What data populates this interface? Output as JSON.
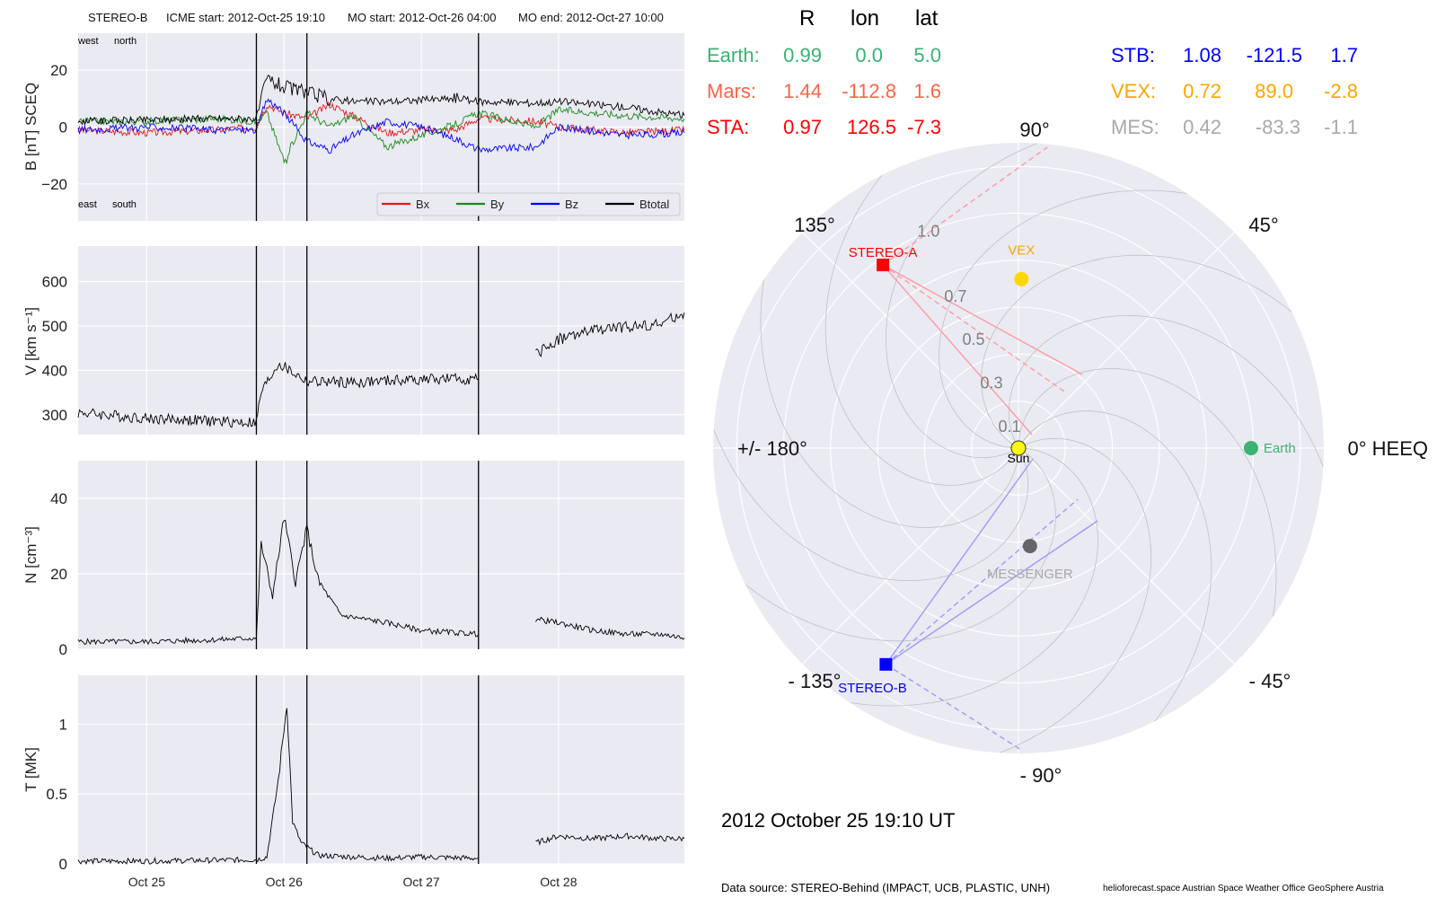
{
  "header": {
    "spacecraft": "STEREO-B",
    "icme_start": "ICME start: 2012-Oct-25 19:10",
    "mo_start": "MO start: 2012-Oct-26 04:00",
    "mo_end": "MO end: 2012-Oct-27 10:00"
  },
  "colors": {
    "bx": "#e31a1c",
    "by": "#1b8a1b",
    "bz": "#0000ff",
    "btotal": "#000000",
    "panel_bg": "#eaeaf2",
    "earth": "#3cb371",
    "mars": "#ff6347",
    "sta": "#ff0000",
    "stb": "#0000ff",
    "vex": "#ffa500",
    "mes": "#a9a9a9"
  },
  "chart_data": [
    {
      "type": "line",
      "ylabel": "B [nT] SCEQ",
      "ylim": [
        -33,
        33
      ],
      "yticks": [
        -20,
        0,
        20
      ],
      "grid": true,
      "x_range_days": [
        "2012-10-24 12:00",
        "2012-10-28 22:00"
      ],
      "xticks": [
        "Oct 25",
        "Oct 26",
        "Oct 27",
        "Oct 28"
      ],
      "corner_labels": {
        "top_left": "west",
        "top_right": "north",
        "bottom_left": "east",
        "bottom_right": "south"
      },
      "legend": {
        "placement": "bottom-right",
        "entries": [
          "Bx",
          "By",
          "Bz",
          "Btotal"
        ]
      },
      "vertical_lines": [
        "2012-10-25 19:10",
        "2012-10-26 04:00",
        "2012-10-27 10:00"
      ],
      "series": [
        {
          "name": "Bx",
          "x": [
            "2012-10-24 12:00",
            "2012-10-25 00:00",
            "2012-10-25 12:00",
            "2012-10-25 19:10",
            "2012-10-25 21:00",
            "2012-10-26 00:00",
            "2012-10-26 04:00",
            "2012-10-26 08:00",
            "2012-10-26 12:00",
            "2012-10-26 18:00",
            "2012-10-27 00:00",
            "2012-10-27 06:00",
            "2012-10-27 10:00",
            "2012-10-27 20:00",
            "2012-10-28 00:00",
            "2012-10-28 12:00",
            "2012-10-28 22:00"
          ],
          "values": [
            -1,
            -2,
            -1,
            0,
            8,
            5,
            3,
            8,
            4,
            -2,
            -1,
            -1,
            3,
            2,
            0,
            -2,
            -1
          ]
        },
        {
          "name": "By",
          "x": [
            "2012-10-24 12:00",
            "2012-10-25 00:00",
            "2012-10-25 12:00",
            "2012-10-25 19:10",
            "2012-10-25 21:00",
            "2012-10-26 00:00",
            "2012-10-26 04:00",
            "2012-10-26 08:00",
            "2012-10-26 12:00",
            "2012-10-26 18:00",
            "2012-10-27 00:00",
            "2012-10-27 06:00",
            "2012-10-27 10:00",
            "2012-10-27 20:00",
            "2012-10-28 00:00",
            "2012-10-28 12:00",
            "2012-10-28 22:00"
          ],
          "values": [
            2,
            2,
            3,
            2,
            5,
            -12,
            5,
            0,
            4,
            -7,
            -3,
            1,
            5,
            0,
            6,
            4,
            3
          ]
        },
        {
          "name": "Bz",
          "x": [
            "2012-10-24 12:00",
            "2012-10-25 00:00",
            "2012-10-25 12:00",
            "2012-10-25 19:10",
            "2012-10-25 21:00",
            "2012-10-26 00:00",
            "2012-10-26 04:00",
            "2012-10-26 08:00",
            "2012-10-26 12:00",
            "2012-10-26 18:00",
            "2012-10-27 00:00",
            "2012-10-27 06:00",
            "2012-10-27 10:00",
            "2012-10-27 20:00",
            "2012-10-28 00:00",
            "2012-10-28 12:00",
            "2012-10-28 22:00"
          ],
          "values": [
            -1,
            0,
            -1,
            -1,
            10,
            5,
            -5,
            -8,
            -3,
            2,
            0,
            -4,
            -8,
            -7,
            0,
            -3,
            -2
          ]
        },
        {
          "name": "Btotal",
          "x": [
            "2012-10-24 12:00",
            "2012-10-25 00:00",
            "2012-10-25 12:00",
            "2012-10-25 19:10",
            "2012-10-25 21:00",
            "2012-10-26 00:00",
            "2012-10-26 04:00",
            "2012-10-26 08:00",
            "2012-10-26 12:00",
            "2012-10-26 18:00",
            "2012-10-27 00:00",
            "2012-10-27 06:00",
            "2012-10-27 10:00",
            "2012-10-27 20:00",
            "2012-10-28 00:00",
            "2012-10-28 12:00",
            "2012-10-28 22:00"
          ],
          "values": [
            2,
            2.5,
            3,
            3,
            17,
            14,
            12,
            10,
            9,
            9,
            9.5,
            10,
            9,
            8.5,
            9,
            7,
            4
          ]
        }
      ]
    },
    {
      "type": "line",
      "ylabel": "V [km s⁻¹]",
      "ylim": [
        255,
        680
      ],
      "yticks": [
        300,
        400,
        500,
        600
      ],
      "grid": true,
      "xticks": [
        "Oct 25",
        "Oct 26",
        "Oct 27",
        "Oct 28"
      ],
      "vertical_lines": [
        "2012-10-25 19:10",
        "2012-10-26 04:00",
        "2012-10-27 10:00"
      ],
      "series": [
        {
          "x": [
            "2012-10-24 12:00",
            "2012-10-25 00:00",
            "2012-10-25 12:00",
            "2012-10-25 19:10",
            "2012-10-25 20:00",
            "2012-10-25 23:00",
            "2012-10-26 04:00",
            "2012-10-26 12:00",
            "2012-10-27 00:00",
            "2012-10-27 10:00"
          ],
          "values": [
            305,
            292,
            285,
            282,
            350,
            415,
            375,
            372,
            380,
            380
          ]
        },
        {
          "x": [
            "2012-10-27 20:00",
            "2012-10-28 00:00",
            "2012-10-28 06:00",
            "2012-10-28 12:00",
            "2012-10-28 18:00",
            "2012-10-28 22:00"
          ],
          "values": [
            435,
            470,
            490,
            498,
            505,
            530
          ]
        }
      ]
    },
    {
      "type": "line",
      "ylabel": "N [cm⁻³]",
      "ylim": [
        0,
        50
      ],
      "yticks": [
        0,
        20,
        40
      ],
      "grid": true,
      "xticks": [
        "Oct 25",
        "Oct 26",
        "Oct 27",
        "Oct 28"
      ],
      "vertical_lines": [
        "2012-10-25 19:10",
        "2012-10-26 04:00",
        "2012-10-27 10:00"
      ],
      "series": [
        {
          "x": [
            "2012-10-24 12:00",
            "2012-10-25 00:00",
            "2012-10-25 12:00",
            "2012-10-25 19:10",
            "2012-10-25 20:00",
            "2012-10-25 22:00",
            "2012-10-26 00:00",
            "2012-10-26 02:00",
            "2012-10-26 04:00",
            "2012-10-26 06:00",
            "2012-10-26 10:00",
            "2012-10-26 18:00",
            "2012-10-27 00:00",
            "2012-10-27 10:00"
          ],
          "values": [
            2,
            2,
            2.5,
            3,
            28,
            14,
            35,
            18,
            32,
            18,
            9,
            7,
            5,
            4
          ]
        },
        {
          "x": [
            "2012-10-27 20:00",
            "2012-10-28 00:00",
            "2012-10-28 06:00",
            "2012-10-28 12:00",
            "2012-10-28 18:00",
            "2012-10-28 22:00"
          ],
          "values": [
            8,
            7,
            5,
            4,
            4,
            3
          ]
        }
      ]
    },
    {
      "type": "line",
      "ylabel": "T [MK]",
      "ylim": [
        0,
        1.35
      ],
      "yticks": [
        0.0,
        0.5,
        1.0
      ],
      "grid": true,
      "xticks": [
        "Oct 25",
        "Oct 26",
        "Oct 27",
        "Oct 28"
      ],
      "vertical_lines": [
        "2012-10-25 19:10",
        "2012-10-26 04:00",
        "2012-10-27 10:00"
      ],
      "series": [
        {
          "x": [
            "2012-10-24 12:00",
            "2012-10-25 00:00",
            "2012-10-25 19:10",
            "2012-10-25 21:00",
            "2012-10-25 23:00",
            "2012-10-26 00:30",
            "2012-10-26 01:30",
            "2012-10-26 03:00",
            "2012-10-26 06:00",
            "2012-10-26 18:00",
            "2012-10-27 00:00",
            "2012-10-27 10:00"
          ],
          "values": [
            0.02,
            0.02,
            0.03,
            0.05,
            0.6,
            1.15,
            0.3,
            0.15,
            0.06,
            0.04,
            0.05,
            0.04
          ]
        },
        {
          "x": [
            "2012-10-27 20:00",
            "2012-10-28 00:00",
            "2012-10-28 06:00",
            "2012-10-28 12:00",
            "2012-10-28 18:00",
            "2012-10-28 22:00"
          ],
          "values": [
            0.15,
            0.2,
            0.18,
            0.2,
            0.18,
            0.18
          ]
        }
      ]
    }
  ],
  "polar": {
    "title_date": "2012 October 25  19:10 UT",
    "angle_labels": [
      "0° HEEQ",
      "45°",
      "90°",
      "135°",
      "+/- 180°",
      "- 135°",
      "- 90°",
      "- 45°"
    ],
    "radius_labels": [
      "0.1",
      "0.3",
      "0.5",
      "0.7",
      "1.0"
    ],
    "bodies": [
      {
        "name": "Sun",
        "r": 0,
        "lon": 0,
        "color": "#ffff00"
      },
      {
        "name": "Earth",
        "r": 0.99,
        "lon": 0.0,
        "color": "#3cb371"
      },
      {
        "name": "STEREO-A",
        "r": 0.97,
        "lon": 126.5,
        "color": "#ff0000"
      },
      {
        "name": "STEREO-B",
        "r": 1.08,
        "lon": -121.5,
        "color": "#0000ff"
      },
      {
        "name": "VEX",
        "r": 0.72,
        "lon": 89.0,
        "color": "#ffd700"
      },
      {
        "name": "MESSENGER",
        "r": 0.42,
        "lon": -83.3,
        "color": "#666666"
      }
    ]
  },
  "positions": {
    "col_headers": [
      "R",
      "lon",
      "lat"
    ],
    "left_rows": [
      {
        "label": "Earth:",
        "r": "0.99",
        "lon": "0.0",
        "lat": "5.0"
      },
      {
        "label": "Mars:",
        "r": "1.44",
        "lon": "-112.8",
        "lat": "1.6"
      },
      {
        "label": "STA:",
        "r": "0.97",
        "lon": "126.5",
        "lat": "-7.3"
      }
    ],
    "right_rows": [
      {
        "label": "STB:",
        "r": "1.08",
        "lon": "-121.5",
        "lat": "1.7"
      },
      {
        "label": "VEX:",
        "r": "0.72",
        "lon": "89.0",
        "lat": "-2.8"
      },
      {
        "label": "MES:",
        "r": "0.42",
        "lon": "-83.3",
        "lat": "-1.1"
      }
    ]
  },
  "footer": {
    "source": "Data source: STEREO-Behind (IMPACT, UCB, PLASTIC, UNH)",
    "credits": "helioforecast.space   Austrian Space Weather Office   GeoSphere Austria"
  }
}
